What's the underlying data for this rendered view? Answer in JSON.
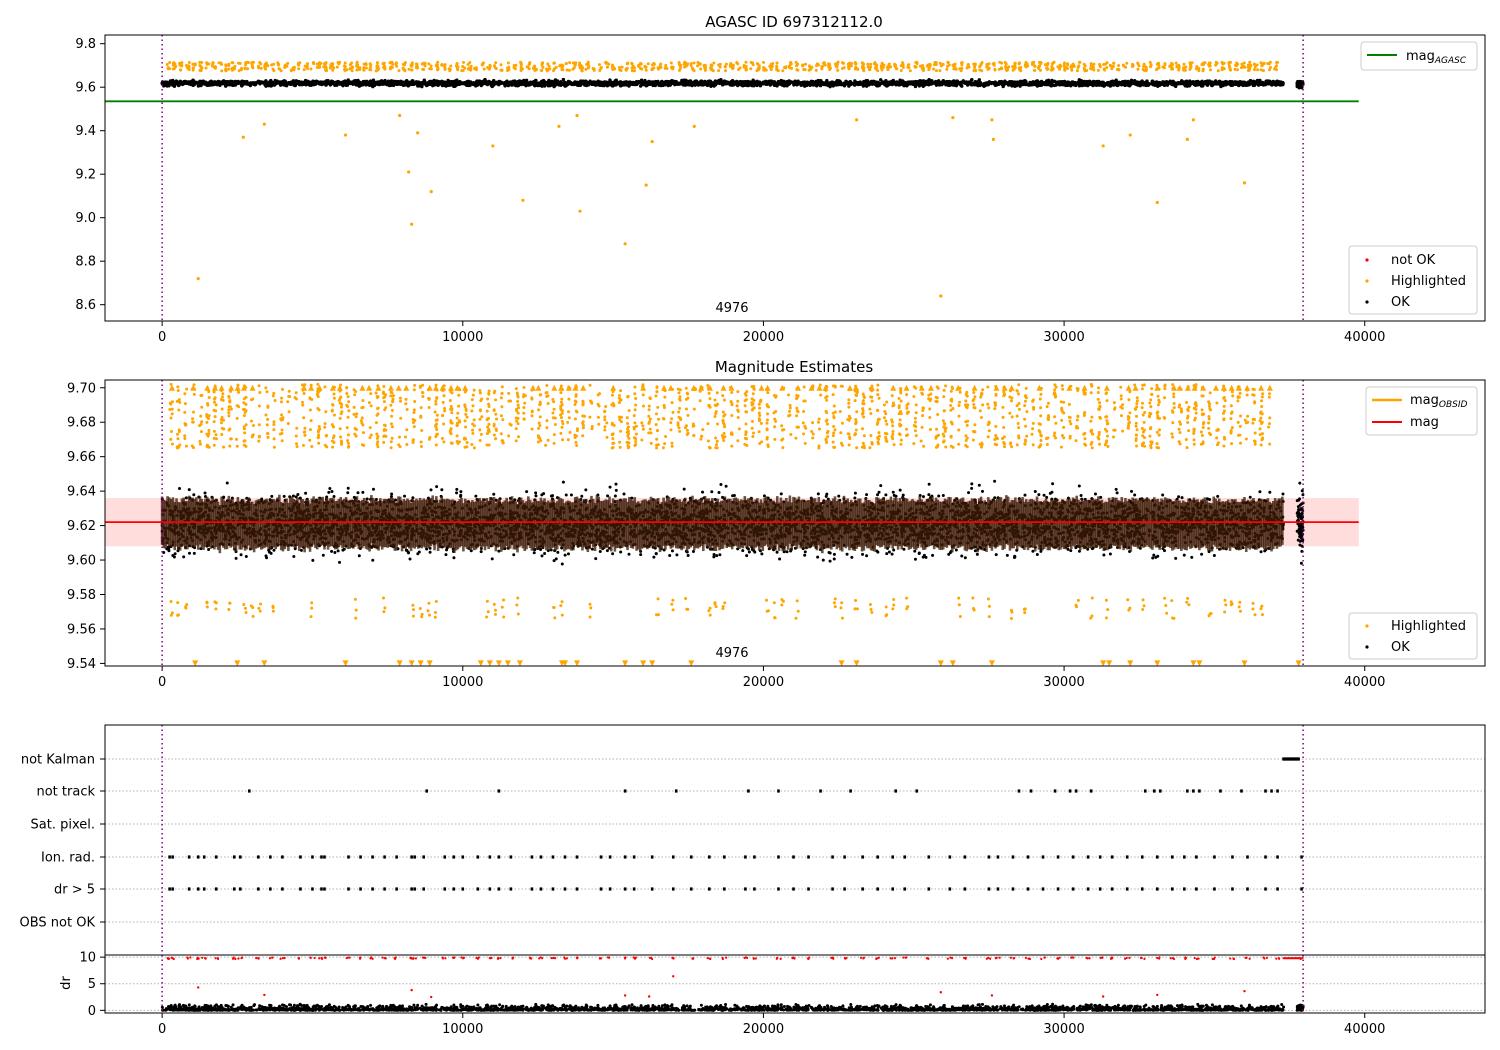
{
  "chart_data": [
    {
      "type": "scatter",
      "title": "AGASC ID 697312112.0",
      "xlabel": "",
      "ylabel": "",
      "xlim": [
        -1900,
        44000
      ],
      "ylim": [
        8.525,
        9.84
      ],
      "xticks": [
        0,
        10000,
        20000,
        30000,
        40000
      ],
      "yticks": [
        8.6,
        8.8,
        9.0,
        9.2,
        9.4,
        9.6,
        9.8
      ],
      "ytick_labels": [
        "8.6",
        "8.8",
        "9.0",
        "9.2",
        "9.4",
        "9.6",
        "9.8"
      ],
      "vlines": [
        0,
        37950
      ],
      "annotation": {
        "text": "4976",
        "x": 19000,
        "y": 8.57
      },
      "hlines": [
        {
          "name": "mag_AGASC",
          "y": 9.535,
          "xmin": -1900,
          "xmax": 39800,
          "color": "#008000"
        }
      ],
      "legends": [
        {
          "placement": "top-right",
          "entries": [
            {
              "label": "mag",
              "sub": "AGASC",
              "kind": "line",
              "color": "#008000"
            }
          ]
        },
        {
          "placement": "bottom-right",
          "entries": [
            {
              "label": "not OK",
              "kind": "dot",
              "color": "#ff0000"
            },
            {
              "label": "Highlighted",
              "kind": "dot",
              "color": "#ffa500"
            },
            {
              "label": "OK",
              "kind": "dot",
              "color": "#000000"
            }
          ]
        }
      ],
      "series": [
        {
          "name": "OK",
          "color": "#000000",
          "band": {
            "x_start": 0,
            "x_end": 37300,
            "center": 9.618,
            "spread": 0.04
          },
          "extra_cluster": {
            "x_start": 37750,
            "x_end": 37950,
            "center": 9.615,
            "spread": 0.06
          }
        },
        {
          "name": "Highlighted",
          "color": "#ffa500",
          "band": {
            "x_start": 0,
            "x_end": 37300,
            "center": 9.695,
            "spread": 0.04
          },
          "outliers": [
            [
              1200,
              8.72
            ],
            [
              2700,
              9.37
            ],
            [
              3400,
              9.43
            ],
            [
              6100,
              9.38
            ],
            [
              7900,
              9.47
            ],
            [
              8200,
              9.21
            ],
            [
              8300,
              8.97
            ],
            [
              8500,
              9.39
            ],
            [
              8950,
              9.12
            ],
            [
              11000,
              9.33
            ],
            [
              12000,
              9.08
            ],
            [
              13200,
              9.42
            ],
            [
              13800,
              9.47
            ],
            [
              13900,
              9.03
            ],
            [
              15400,
              8.88
            ],
            [
              16100,
              9.15
            ],
            [
              16300,
              9.35
            ],
            [
              17700,
              9.42
            ],
            [
              23100,
              9.45
            ],
            [
              25900,
              8.64
            ],
            [
              26300,
              9.46
            ],
            [
              27600,
              9.45
            ],
            [
              27650,
              9.36
            ],
            [
              31300,
              9.33
            ],
            [
              32200,
              9.38
            ],
            [
              33100,
              9.07
            ],
            [
              34100,
              9.36
            ],
            [
              34300,
              9.45
            ],
            [
              36000,
              9.16
            ]
          ]
        }
      ]
    },
    {
      "type": "scatter",
      "title": "Magnitude Estimates",
      "xlabel": "",
      "ylabel": "",
      "xlim": [
        -1900,
        44000
      ],
      "ylim": [
        9.5385,
        9.7045
      ],
      "xticks": [
        0,
        10000,
        20000,
        30000,
        40000
      ],
      "yticks": [
        9.54,
        9.56,
        9.58,
        9.6,
        9.62,
        9.64,
        9.66,
        9.68,
        9.7
      ],
      "ytick_labels": [
        "9.54",
        "9.56",
        "9.58",
        "9.60",
        "9.62",
        "9.64",
        "9.66",
        "9.68",
        "9.70"
      ],
      "vlines": [
        0,
        37950
      ],
      "annotation": {
        "text": "4976",
        "x": 19000,
        "y": 9.544
      },
      "mag_line": {
        "name": "mag",
        "y": 9.622,
        "xmin": -1900,
        "xmax": 39800,
        "color": "#ff0000"
      },
      "mag_band": {
        "ymin": 9.608,
        "ymax": 9.636,
        "xmin": -1900,
        "xmax": 39800,
        "color": "#ffdddd"
      },
      "mag_obsid": {
        "name": "mag_OBSID",
        "color": "#ffa500",
        "y_center": 9.621,
        "halfwidth": 0.014
      },
      "legends": [
        {
          "placement": "top-right",
          "entries": [
            {
              "label": "mag",
              "sub": "OBSID",
              "kind": "line",
              "color": "#ffa500"
            },
            {
              "label": "mag",
              "kind": "line",
              "color": "#ff0000"
            }
          ]
        },
        {
          "placement": "bottom-right",
          "entries": [
            {
              "label": "Highlighted",
              "kind": "dot",
              "color": "#ffa500"
            },
            {
              "label": "OK",
              "kind": "dot",
              "color": "#000000"
            }
          ]
        }
      ],
      "series": [
        {
          "name": "OK",
          "color": "#000000",
          "center": 9.621,
          "spread_min": 9.582,
          "spread_max": 9.665,
          "core_color": "#3a1a05"
        },
        {
          "name": "Highlighted",
          "color": "#ffa500",
          "top_clip": 9.7,
          "bottom_clip": 9.54
        }
      ],
      "clip_markers_bottom_x": [
        1100,
        2500,
        3400,
        6100,
        7900,
        8300,
        8600,
        8900,
        10600,
        10900,
        11200,
        11500,
        11900,
        13300,
        13400,
        13800,
        15400,
        16000,
        16300,
        17600,
        22600,
        23100,
        25900,
        26300,
        27600,
        31300,
        31500,
        32200,
        33100,
        34300,
        34500,
        36000,
        37800
      ]
    },
    {
      "type": "scatter",
      "title": "",
      "xlim": [
        -1900,
        44000
      ],
      "xticks": [
        0,
        10000,
        20000,
        30000,
        40000
      ],
      "vlines": [
        0,
        37950
      ],
      "flag_rows": [
        "not Kalman",
        "not track",
        "Sat. pixel.",
        "Ion. rad.",
        "dr > 5",
        "OBS not OK"
      ],
      "flag_points": {
        "not Kalman": [
          37300,
          37350,
          37400,
          37450,
          37500,
          37550,
          37600,
          37650,
          37700,
          37750,
          37800
        ],
        "not track": [
          2900,
          8800,
          11200,
          15400,
          17100,
          19500,
          20500,
          21900,
          22900,
          24400,
          25100,
          28500,
          28900,
          29700,
          30200,
          30400,
          30900,
          32700,
          33000,
          33200,
          34100,
          34300,
          34500,
          35200,
          35900,
          36700,
          36900,
          37100
        ],
        "Sat. pixel.": [],
        "Ion. rad.": [
          250,
          350,
          900,
          1200,
          1400,
          1800,
          2400,
          2600,
          3200,
          3600,
          4000,
          4600,
          5000,
          5300,
          5400,
          6200,
          6600,
          7000,
          7400,
          7800,
          8300,
          8400,
          8700,
          9400,
          9700,
          10000,
          10500,
          10900,
          11200,
          11600,
          12300,
          12600,
          13000,
          13400,
          13800,
          14600,
          14900,
          15400,
          15700,
          16300,
          17000,
          17600,
          18200,
          18700,
          19400,
          19700,
          20500,
          21000,
          21500,
          22300,
          22700,
          23300,
          23800,
          24300,
          24700,
          25500,
          26200,
          26700,
          27500,
          27800,
          28300,
          28800,
          29300,
          29800,
          30300,
          30800,
          31200,
          31600,
          32100,
          32600,
          33100,
          33600,
          34000,
          34400,
          35000,
          35600,
          36100,
          36700,
          37100,
          37900
        ],
        "dr > 5": [
          250,
          350,
          900,
          1200,
          1400,
          1800,
          2400,
          2600,
          3200,
          3600,
          4000,
          4600,
          5000,
          5300,
          5400,
          6200,
          6600,
          7000,
          7400,
          7800,
          8300,
          8400,
          8700,
          9400,
          9700,
          10000,
          10500,
          10900,
          11200,
          11600,
          12300,
          12600,
          13000,
          13400,
          13800,
          14600,
          14900,
          15400,
          15700,
          16300,
          17000,
          17600,
          18200,
          18700,
          19400,
          19700,
          20500,
          21000,
          21500,
          22300,
          22700,
          23300,
          23800,
          24300,
          24700,
          25500,
          26200,
          26700,
          27500,
          27800,
          28300,
          28800,
          29300,
          29800,
          30300,
          30800,
          31200,
          31600,
          32100,
          32600,
          33100,
          33600,
          34000,
          34400,
          35000,
          35600,
          36100,
          36700,
          37100,
          37900
        ],
        "OBS not OK": []
      }
    },
    {
      "type": "scatter",
      "xlabel": "",
      "ylabel": "dr",
      "xlim": [
        -1900,
        44000
      ],
      "ylim": [
        -0.5,
        10.4
      ],
      "xticks": [
        0,
        10000,
        20000,
        30000,
        40000
      ],
      "yticks": [
        0,
        5,
        10
      ],
      "vlines": [
        0,
        37950
      ],
      "series": [
        {
          "name": "OK",
          "color": "#000000",
          "y_range": [
            0,
            1.2
          ]
        },
        {
          "name": "not OK",
          "color": "#ff0000",
          "y_level": 9.8,
          "outliers": [
            [
              1200,
              4.3
            ],
            [
              3400,
              2.9
            ],
            [
              8300,
              3.8
            ],
            [
              8950,
              2.5
            ],
            [
              15400,
              2.8
            ],
            [
              16200,
              2.6
            ],
            [
              17000,
              6.4
            ],
            [
              25900,
              3.4
            ],
            [
              27600,
              2.8
            ],
            [
              31300,
              2.6
            ],
            [
              33100,
              2.9
            ],
            [
              36000,
              3.6
            ]
          ]
        }
      ]
    }
  ]
}
